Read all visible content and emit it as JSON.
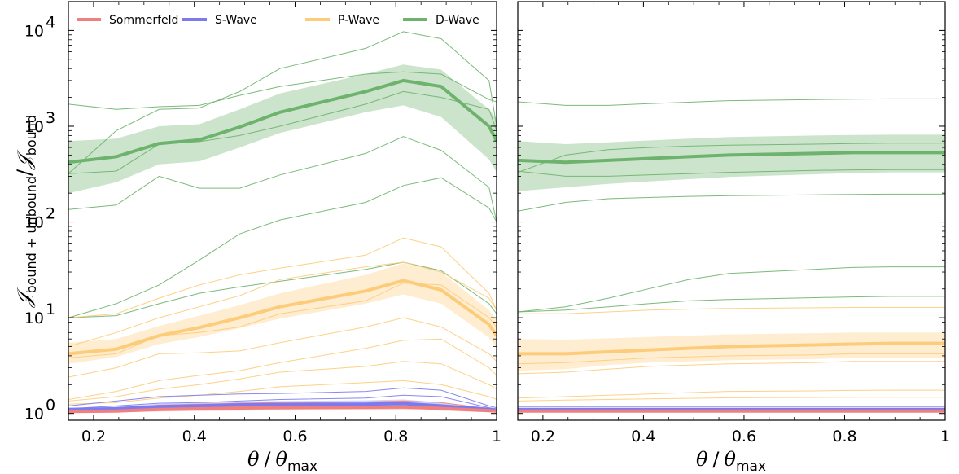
{
  "chart_data": {
    "type": "line",
    "yscale": "log",
    "ylabel": {
      "script": "𝒥",
      "sub": "bound + unbound",
      "slash": "/",
      "script2": "𝒥",
      "sub2": "bound"
    },
    "xlabel": {
      "theta": "θ",
      "slash": "/",
      "sub": "max"
    },
    "colors": {
      "Sommerfeld": "#f07f7f",
      "S-Wave": "#7b7bef",
      "P-Wave": "#fdcc7a",
      "D-Wave": "#6db36d"
    },
    "legend": {
      "placement": "top",
      "entries": [
        "Sommerfeld",
        "S-Wave",
        "P-Wave",
        "D-Wave"
      ]
    },
    "panels": [
      {
        "id": "left",
        "xlim": [
          0.15,
          1.0
        ],
        "ylim": [
          0.85,
          20000
        ],
        "xticks": [
          {
            "value": 0.2,
            "label": "0.2"
          },
          {
            "value": 0.4,
            "label": "0.4"
          },
          {
            "value": 0.6,
            "label": "0.6"
          },
          {
            "value": 0.8,
            "label": "0.8"
          },
          {
            "value": 1.0,
            "label": "1"
          }
        ],
        "yticks": [
          {
            "value": 1,
            "base": "10",
            "exp": "0"
          },
          {
            "value": 10,
            "base": "10",
            "exp": "1"
          },
          {
            "value": 100,
            "base": "10",
            "exp": "2"
          },
          {
            "value": 1000,
            "base": "10",
            "exp": "3"
          },
          {
            "value": 10000,
            "base": "10",
            "exp": "4"
          }
        ],
        "x": [
          0.15,
          0.245,
          0.33,
          0.41,
          0.49,
          0.57,
          0.74,
          0.815,
          0.89,
          0.985,
          1.0
        ],
        "series": [
          {
            "name": "D-Wave",
            "median": [
              420,
              480,
              660,
              720,
              980,
              1400,
              2300,
              3000,
              2600,
              1000,
              700
            ],
            "band_low": [
              200,
              260,
              400,
              430,
              600,
              850,
              1400,
              1650,
              1250,
              450,
              330
            ],
            "band_high": [
              700,
              740,
              1000,
              1050,
              1500,
              2200,
              3500,
              4400,
              3900,
              1500,
              1200
            ],
            "thin": [
              [
                1700,
                1500,
                1600,
                1650,
                2100,
                2600,
                3500,
                3700,
                3500,
                1900,
                1800
              ],
              [
                320,
                900,
                1500,
                1550,
                2300,
                4000,
                6500,
                9700,
                8200,
                3000,
                1000
              ],
              [
                320,
                340,
                650,
                690,
                800,
                1000,
                1700,
                2300,
                2000,
                1500,
                900
              ],
              [
                135,
                150,
                300,
                225,
                225,
                310,
                520,
                780,
                560,
                230,
                100
              ],
              [
                10,
                14,
                22,
                40,
                75,
                105,
                160,
                240,
                290,
                140,
                100
              ],
              [
                10,
                10.5,
                14,
                18,
                21,
                24,
                32,
                38,
                31,
                14,
                11
              ]
            ]
          },
          {
            "name": "P-Wave",
            "median": [
              4.2,
              4.7,
              6.5,
              7.9,
              10,
              13,
              19,
              24.5,
              19.5,
              8.5,
              6.5
            ],
            "band_low": [
              3.3,
              3.9,
              5.3,
              6.3,
              7.8,
              9.8,
              14,
              17.5,
              14,
              6.2,
              4.8
            ],
            "band_high": [
              5.5,
              6,
              8.2,
              10.5,
              13.5,
              18,
              28,
              37,
              30,
              12,
              9.5
            ],
            "thin": [
              [
                10,
                11,
                16,
                22,
                28,
                33,
                45,
                68,
                55,
                18,
                12
              ],
              [
                5,
                7,
                10,
                13,
                17,
                25,
                34,
                38,
                30,
                16,
                12
              ],
              [
                3.8,
                4.2,
                6.5,
                7,
                8,
                11,
                15,
                23,
                22,
                10,
                8
              ],
              [
                2.4,
                3,
                4.2,
                4.3,
                4.5,
                5.5,
                8,
                10,
                8,
                4.2,
                3.5
              ],
              [
                1.4,
                1.7,
                2.2,
                2.5,
                2.8,
                3.4,
                4.8,
                5.8,
                6,
                3,
                2.5
              ],
              [
                1.35,
                1.5,
                1.8,
                2,
                2.3,
                2.7,
                3.1,
                3.5,
                3.3,
                2,
                1.8
              ],
              [
                1.25,
                1.3,
                1.45,
                1.55,
                1.7,
                1.9,
                2.1,
                2.2,
                2,
                1.5,
                1.4
              ]
            ]
          },
          {
            "name": "S-Wave",
            "median": [
              1.1,
              1.12,
              1.18,
              1.2,
              1.23,
              1.24,
              1.25,
              1.27,
              1.2,
              1.1,
              1.08
            ],
            "band_low": [
              1.06,
              1.07,
              1.1,
              1.11,
              1.13,
              1.14,
              1.15,
              1.16,
              1.12,
              1.05,
              1.04
            ],
            "band_high": [
              1.15,
              1.18,
              1.26,
              1.29,
              1.33,
              1.35,
              1.37,
              1.4,
              1.3,
              1.15,
              1.12
            ],
            "thin": [
              [
                1.2,
                1.35,
                1.5,
                1.55,
                1.6,
                1.62,
                1.7,
                1.85,
                1.75,
                1.2,
                1.15
              ],
              [
                1.12,
                1.2,
                1.28,
                1.3,
                1.35,
                1.4,
                1.45,
                1.55,
                1.5,
                1.15,
                1.12
              ]
            ]
          },
          {
            "name": "Sommerfeld",
            "median": [
              1.05,
              1.06,
              1.1,
              1.12,
              1.14,
              1.15,
              1.16,
              1.17,
              1.13,
              1.07,
              1.06
            ],
            "band_low": [
              1.02,
              1.03,
              1.05,
              1.06,
              1.07,
              1.08,
              1.09,
              1.1,
              1.07,
              1.03,
              1.02
            ],
            "band_high": [
              1.09,
              1.1,
              1.15,
              1.17,
              1.2,
              1.21,
              1.23,
              1.25,
              1.2,
              1.11,
              1.09
            ],
            "thin": [
              [
                1.08,
                1.12,
                1.22,
                1.25,
                1.28,
                1.3,
                1.32,
                1.35,
                1.3,
                1.12,
                1.1
              ]
            ]
          }
        ]
      },
      {
        "id": "right",
        "xlim": [
          0.15,
          1.0
        ],
        "ylim": [
          0.85,
          20000
        ],
        "xticks": [
          {
            "value": 0.2,
            "label": "0.2"
          },
          {
            "value": 0.4,
            "label": "0.4"
          },
          {
            "value": 0.6,
            "label": "0.6"
          },
          {
            "value": 0.8,
            "label": "0.8"
          },
          {
            "value": 1.0,
            "label": "1"
          }
        ],
        "x": [
          0.15,
          0.245,
          0.33,
          0.41,
          0.49,
          0.57,
          0.74,
          0.815,
          0.89,
          0.985,
          1.0
        ],
        "series": [
          {
            "name": "D-Wave",
            "median": [
              440,
              420,
              440,
              460,
              480,
              500,
              520,
              530,
              530,
              530,
              530
            ],
            "band_low": [
              210,
              230,
              250,
              265,
              280,
              295,
              315,
              325,
              330,
              330,
              330
            ],
            "band_high": [
              700,
              650,
              680,
              710,
              740,
              770,
              800,
              810,
              815,
              815,
              815
            ],
            "thin": [
              [
                1800,
                1650,
                1650,
                1720,
                1780,
                1850,
                1900,
                1920,
                1930,
                1930,
                1930
              ],
              [
                330,
                500,
                570,
                600,
                620,
                635,
                650,
                660,
                665,
                665,
                665
              ],
              [
                340,
                300,
                300,
                310,
                320,
                330,
                345,
                350,
                352,
                352,
                352
              ],
              [
                130,
                160,
                175,
                180,
                185,
                188,
                192,
                194,
                195,
                195,
                195
              ],
              [
                11.5,
                13,
                16,
                20,
                25,
                29,
                32,
                33.5,
                34,
                34,
                34
              ],
              [
                11.5,
                12,
                13,
                14,
                15,
                15.5,
                16.2,
                16.5,
                16.7,
                16.7,
                16.7
              ]
            ]
          },
          {
            "name": "P-Wave",
            "median": [
              4.2,
              4.2,
              4.4,
              4.6,
              4.8,
              5,
              5.2,
              5.3,
              5.4,
              5.4,
              5.4
            ],
            "band_low": [
              2.8,
              2.9,
              3.2,
              3.4,
              3.5,
              3.6,
              3.7,
              3.8,
              3.8,
              3.8,
              3.8
            ],
            "band_high": [
              6,
              5.9,
              6.1,
              6.3,
              6.5,
              6.7,
              6.9,
              7,
              7,
              7,
              7
            ],
            "thin": [
              [
                11,
                11,
                11.5,
                12,
                12.3,
                12.5,
                12.7,
                12.8,
                12.8,
                12.8,
                12.8
              ],
              [
                3.3,
                3.4,
                3.6,
                3.8,
                3.9,
                4,
                4.1,
                4.2,
                4.2,
                4.2,
                4.2
              ],
              [
                2.6,
                2.7,
                2.9,
                3.1,
                3.2,
                3.3,
                3.4,
                3.5,
                3.5,
                3.5,
                3.5
              ],
              [
                1.45,
                1.5,
                1.55,
                1.6,
                1.65,
                1.7,
                1.72,
                1.74,
                1.75,
                1.75,
                1.75
              ],
              [
                1.35,
                1.38,
                1.4,
                1.42,
                1.44,
                1.46,
                1.47,
                1.48,
                1.48,
                1.48,
                1.48
              ]
            ]
          },
          {
            "name": "S-Wave",
            "median": [
              1.1,
              1.1,
              1.1,
              1.1,
              1.1,
              1.1,
              1.1,
              1.1,
              1.1,
              1.1,
              1.1
            ],
            "band_low": [
              1.07,
              1.07,
              1.07,
              1.07,
              1.07,
              1.07,
              1.07,
              1.07,
              1.07,
              1.07,
              1.07
            ],
            "band_high": [
              1.14,
              1.14,
              1.14,
              1.14,
              1.14,
              1.14,
              1.14,
              1.14,
              1.14,
              1.14,
              1.14
            ],
            "thin": [
              [
                1.18,
                1.18,
                1.18,
                1.18,
                1.18,
                1.18,
                1.18,
                1.18,
                1.18,
                1.18,
                1.18
              ]
            ]
          },
          {
            "name": "Sommerfeld",
            "median": [
              1.06,
              1.06,
              1.06,
              1.06,
              1.06,
              1.06,
              1.06,
              1.06,
              1.06,
              1.06,
              1.06
            ],
            "band_low": [
              1.03,
              1.03,
              1.03,
              1.03,
              1.03,
              1.03,
              1.03,
              1.03,
              1.03,
              1.03,
              1.03
            ],
            "band_high": [
              1.1,
              1.1,
              1.1,
              1.1,
              1.1,
              1.1,
              1.1,
              1.1,
              1.1,
              1.1,
              1.1
            ],
            "thin": [
              [
                1.12,
                1.12,
                1.12,
                1.12,
                1.12,
                1.12,
                1.12,
                1.12,
                1.12,
                1.12,
                1.12
              ]
            ]
          }
        ]
      }
    ]
  }
}
